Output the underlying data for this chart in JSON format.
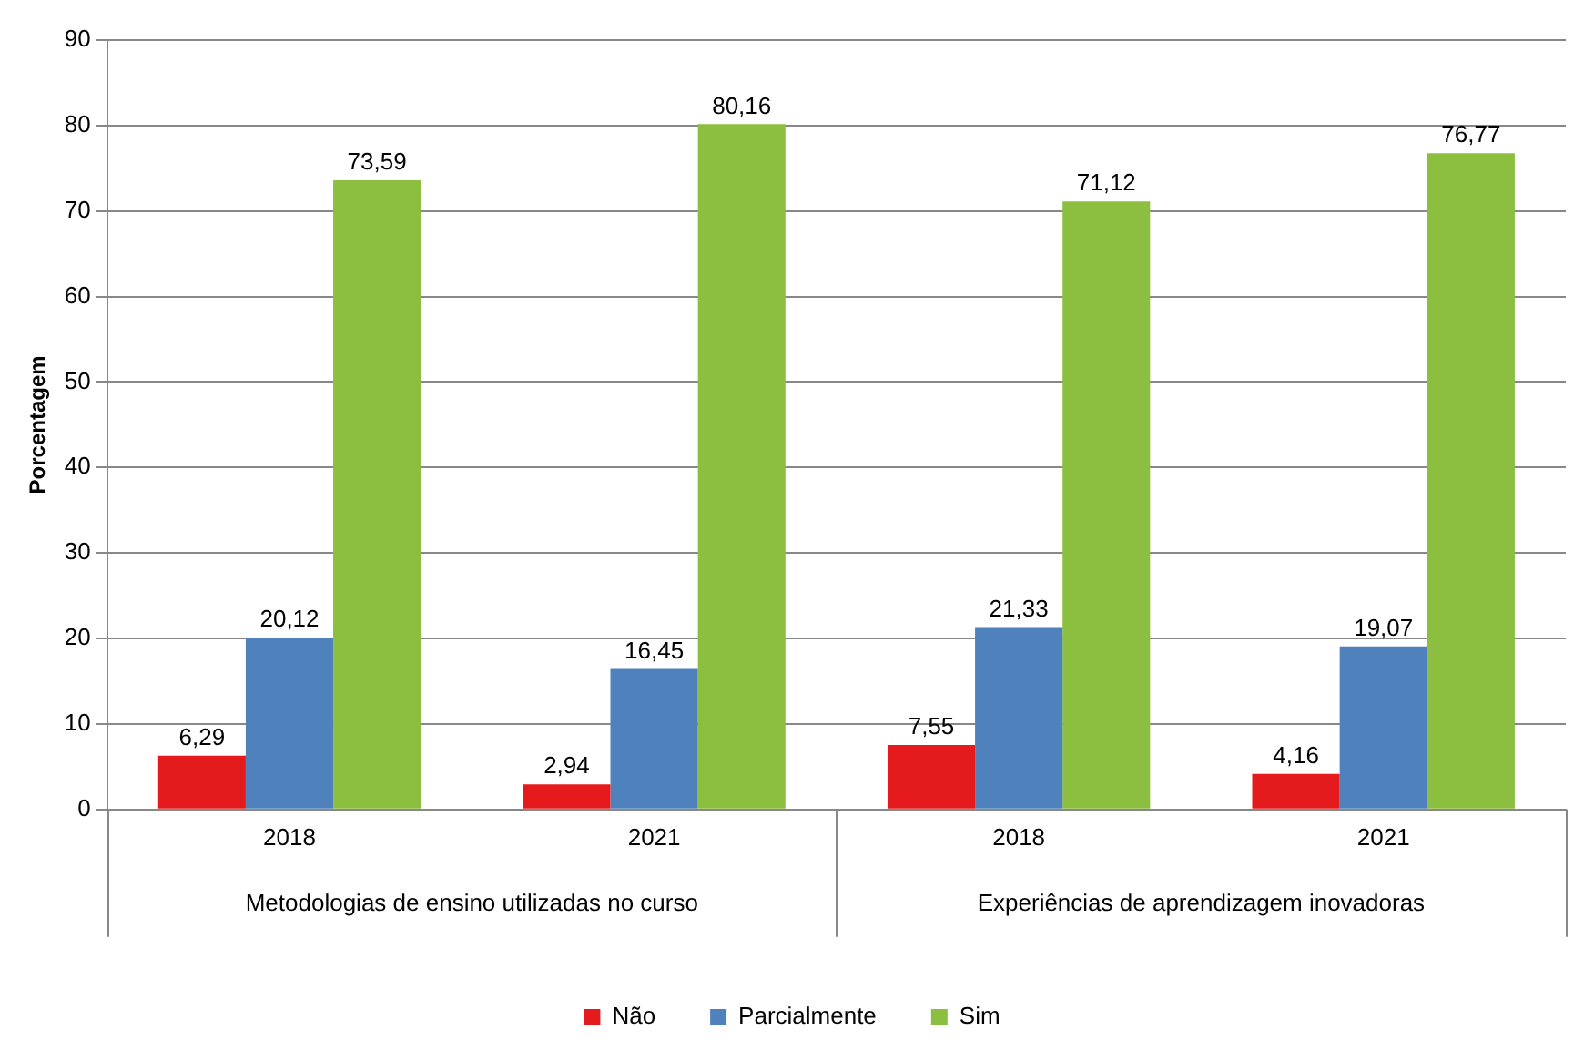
{
  "chart_data": {
    "type": "bar",
    "ylabel": "Porcentagem",
    "categories": [
      "2018",
      "2021",
      "2018",
      "2021"
    ],
    "annotations": [
      "Metodologias de ensino utilizadas no curso",
      "Experiências de aprendizagem inovadoras"
    ],
    "series": [
      {
        "name": "Não",
        "color": "#e41a1c",
        "values": [
          6.29,
          2.94,
          7.55,
          4.16
        ],
        "value_labels": [
          "6,29",
          "2,94",
          "7,55",
          "4,16"
        ]
      },
      {
        "name": "Parcialmente",
        "color": "#4f81bd",
        "values": [
          20.12,
          16.45,
          21.33,
          19.07
        ],
        "value_labels": [
          "20,12",
          "16,45",
          "21,33",
          "19,07"
        ]
      },
      {
        "name": "Sim",
        "color": "#8cbf3f",
        "values": [
          73.59,
          80.16,
          71.12,
          76.77
        ],
        "value_labels": [
          "73,59",
          "80,16",
          "71,12",
          "76,77"
        ]
      }
    ],
    "ylim": [
      0,
      90
    ],
    "yticks": [
      0,
      10,
      20,
      30,
      40,
      50,
      60,
      70,
      80,
      90
    ],
    "grid": "y",
    "legend": "bottom"
  }
}
